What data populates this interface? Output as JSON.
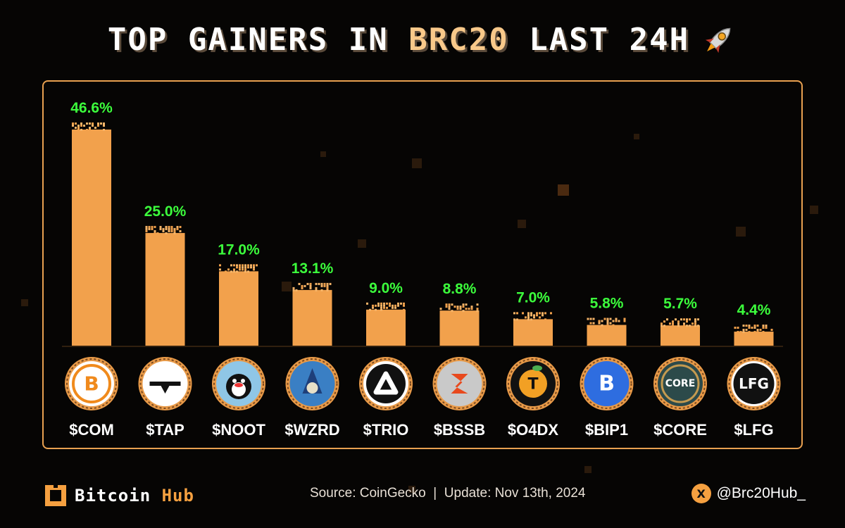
{
  "header": {
    "title_part1": "TOP GAINERS IN",
    "title_accent": "BRC20",
    "title_part2": "LAST 24H",
    "title_icon": "rocket-icon"
  },
  "chart_data": {
    "type": "bar",
    "categories": [
      "$COM",
      "$TAP",
      "$NOOT",
      "$WZRD",
      "$TRIO",
      "$BSSB",
      "$O4DX",
      "$BIP1",
      "$CORE",
      "$LFG"
    ],
    "values": [
      46.6,
      25.0,
      17.0,
      13.1,
      9.0,
      8.8,
      7.0,
      5.8,
      5.7,
      4.4
    ],
    "data_labels": [
      "46.6%",
      "25.0%",
      "17.0%",
      "13.1%",
      "9.0%",
      "8.8%",
      "7.0%",
      "5.8%",
      "5.7%",
      "4.4%"
    ],
    "title": "TOP GAINERS IN BRC20 LAST 24H",
    "xlabel": "",
    "ylabel": "",
    "ylim": [
      0,
      50
    ],
    "grid": false,
    "legend": "none",
    "icons": [
      "com-logo-icon",
      "tap-logo-icon",
      "noot-penguin-icon",
      "wzrd-wizard-icon",
      "trio-logo-icon",
      "bssb-logo-icon",
      "o4dx-orange-icon",
      "bip1-bitcoin-icon",
      "core-logo-icon",
      "lfg-logo-icon"
    ],
    "colors": {
      "bar": "#f2a14c",
      "bar_light": "#f7b569",
      "label": "#3cff3c",
      "category": "#ffffff",
      "frame": "#e8a050"
    }
  },
  "footer": {
    "brand_bitcoin": "Bitcoin",
    "brand_hub": "Hub",
    "source": "Source: CoinGecko  |  Update: Nov 13th, 2024",
    "handle": "@Brc20Hub_",
    "x_icon_glyph": "X"
  }
}
